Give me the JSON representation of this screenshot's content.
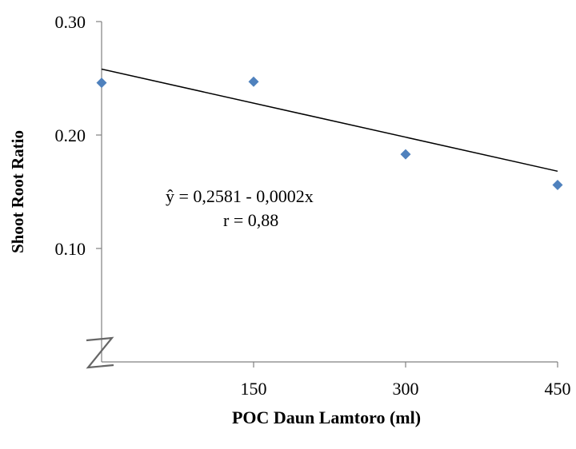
{
  "chart_data": {
    "type": "scatter",
    "xlabel": "POC Daun Lamtoro (ml)",
    "ylabel": "Shoot Root Ratio",
    "x_ticks": [
      "150",
      "300",
      "450"
    ],
    "y_ticks": [
      "0.10",
      "0.20",
      "0.30"
    ],
    "xlim": [
      0,
      450
    ],
    "ylim": [
      0.0,
      0.3
    ],
    "axis_break": true,
    "grid": false,
    "series": [
      {
        "marker": "diamond",
        "color": "#4f81bd",
        "points": [
          {
            "x": 0,
            "y": 0.246
          },
          {
            "x": 150,
            "y": 0.247
          },
          {
            "x": 300,
            "y": 0.183
          },
          {
            "x": 450,
            "y": 0.156
          }
        ]
      }
    ],
    "trendline": {
      "intercept": 0.2581,
      "slope": -0.0002,
      "color": "#000000",
      "x_range": [
        0,
        450
      ]
    },
    "annotations": {
      "equation": "ŷ = 0,2581 - 0,0002x",
      "r_value": "r = 0,88"
    }
  }
}
